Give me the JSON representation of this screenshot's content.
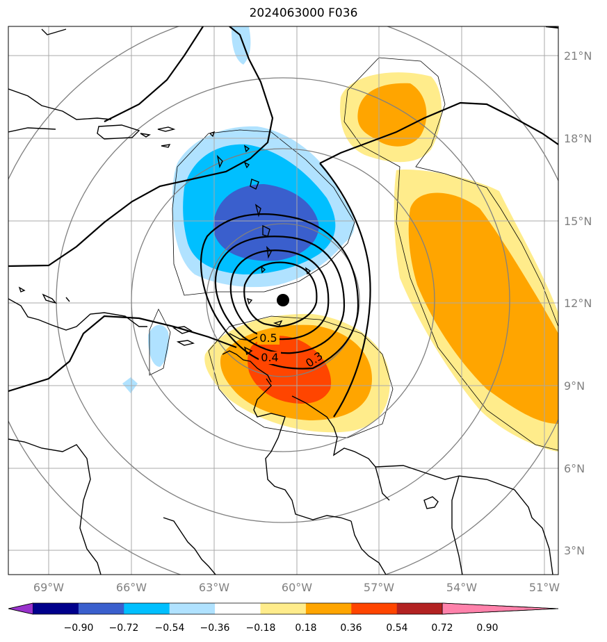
{
  "title": "2024063000 F036",
  "map": {
    "lat_labels": [
      "21°N",
      "18°N",
      "15°N",
      "12°N",
      "9°N",
      "6°N",
      "3°N"
    ],
    "lon_labels": [
      "69°W",
      "66°W",
      "63°W",
      "60°W",
      "57°W",
      "54°W",
      "51°W"
    ],
    "contour_labels": [
      "0.5",
      "0.4",
      "0.3"
    ],
    "center_marker": "storm-center-dot"
  },
  "colorbar": {
    "ticks": [
      "−0.90",
      "−0.72",
      "−0.54",
      "−0.36",
      "−0.18",
      "0.18",
      "0.36",
      "0.54",
      "0.72",
      "0.90"
    ],
    "colors": [
      "#9932cc",
      "#00008b",
      "#3a5fcd",
      "#00bfff",
      "#b0e2ff",
      "#ffffff",
      "#ffec8b",
      "#ffa500",
      "#ff4500",
      "#b22222",
      "#ff82ab"
    ]
  }
}
